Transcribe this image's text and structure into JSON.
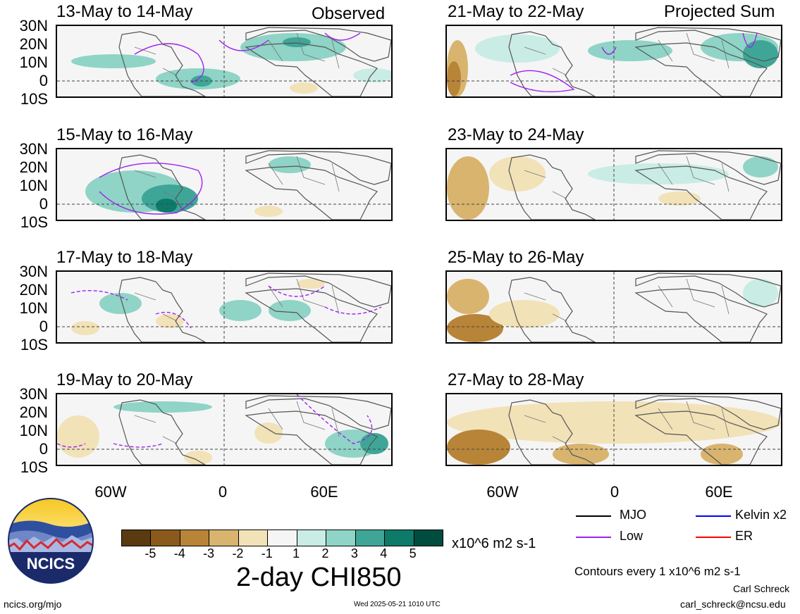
{
  "header": {
    "left_tag": "Observed",
    "right_tag": "Projected Sum"
  },
  "panels": [
    {
      "title": "13-May to 14-May"
    },
    {
      "title": "15-May to 16-May"
    },
    {
      "title": "17-May to 18-May"
    },
    {
      "title": "19-May to 20-May"
    },
    {
      "title": "21-May to 22-May"
    },
    {
      "title": "23-May to 24-May"
    },
    {
      "title": "25-May to 26-May"
    },
    {
      "title": "27-May to 28-May"
    }
  ],
  "lat_labels": [
    "30N",
    "20N",
    "10N",
    "0",
    "10S"
  ],
  "lon_labels": [
    "60W",
    "0",
    "60E"
  ],
  "legend": {
    "items": [
      {
        "label": "MJO",
        "color": "#000000"
      },
      {
        "label": "Kelvin x2",
        "color": "#0000ff"
      },
      {
        "label": "Low",
        "color": "#a020f0"
      },
      {
        "label": "ER",
        "color": "#ff0000"
      }
    ],
    "contour_note": "Contours every 1 x10^6 m2 s-1"
  },
  "colorbar": {
    "labels": [
      "-5",
      "-4",
      "-3",
      "-2",
      "-1",
      "1",
      "2",
      "3",
      "4",
      "5"
    ],
    "colors": [
      "#5a3a10",
      "#8a5a1c",
      "#b88438",
      "#d9b46e",
      "#f2e2b8",
      "#f5f5f5",
      "#c9ece4",
      "#8fd4c6",
      "#3fa697",
      "#0d7a6a",
      "#004d3f"
    ],
    "units": "x10^6 m2 s-1",
    "title": "2-day CHI850"
  },
  "footer": {
    "logo_text": "NCICS",
    "url": "ncics.org/mjo",
    "timestamp": "Wed 2025-05-21 1010 UTC",
    "author": "Carl Schreck",
    "email": "carl_schreck@ncsu.edu"
  }
}
